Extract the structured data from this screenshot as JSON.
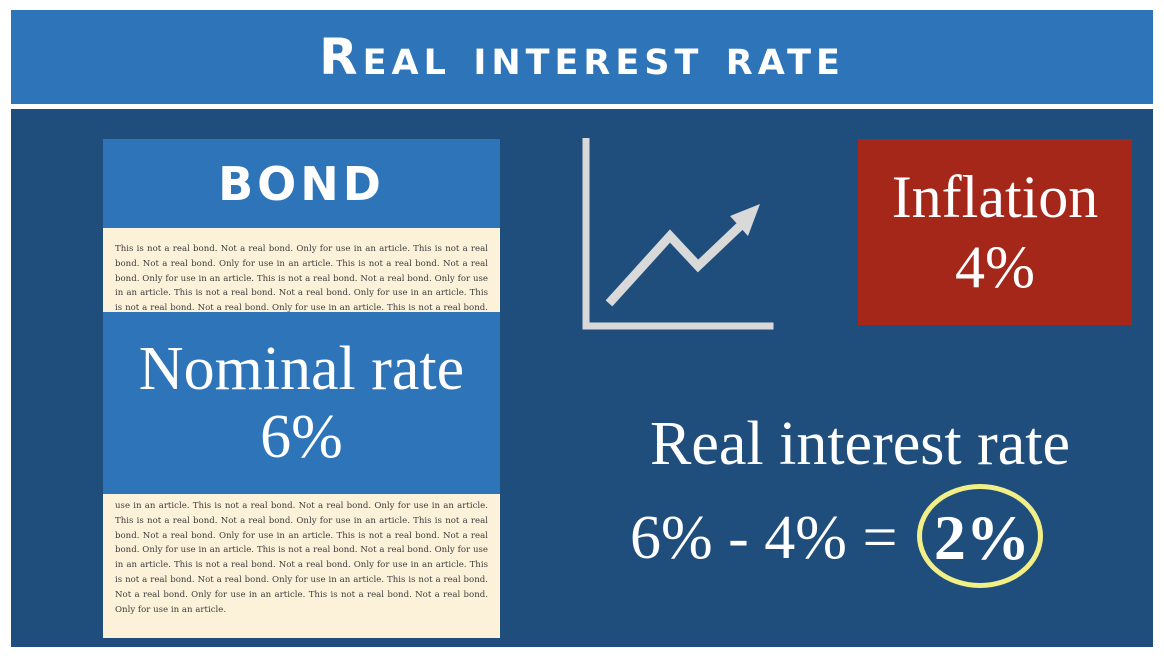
{
  "header": {
    "title": "Real interest rate"
  },
  "bond": {
    "title": "BOND",
    "fine_print_top": "This is not a real bond. Not a real bond. Only for use in an article. This is not a real bond. Not a real bond. Only for use in an article. This is not a real bond. Not a real bond. Only for use in an article. This is not a real bond. Not a real bond. Only for use in an article. This is not a real bond. Not a real bond. Only for use in an article. This is not a real bond. Not a real bond. Only for use in an article. This is not a real bond. Not a real bond. Only for use in an article.",
    "fine_print_bottom": "use in an article. This is not a real bond. Not a real bond. Only for use in an article. This is not a real bond. Not a real bond. Only for use in an article. This is not a real bond. Not a real bond. Only for use in an article. This is not a real bond. Not a real bond. Only for use in an article. This is not a real bond. Not a real bond. Only for use in an article. This is not a real bond. Not a real bond. Only for use in an article. This is not a real bond. Not a real bond. Only for use in an article. This is not a real bond. Not a real bond. Only for use in an article. This is not a real bond. Not a real bond. Only for use in an article.",
    "nominal_label": "Nominal rate",
    "nominal_value": "6%"
  },
  "chart_icon": {
    "name": "trending-up-icon",
    "color": "#d9d9d9"
  },
  "inflation": {
    "label": "Inflation",
    "value": "4%"
  },
  "real_rate": {
    "label": "Real interest rate",
    "equation": "6% - 4% = ",
    "result": "2%",
    "highlight_color": "#f2ef86"
  },
  "colors": {
    "header_blue": "#2e74b8",
    "panel_navy": "#1f4e7d",
    "inflation_red": "#a4271a",
    "bond_paper": "#fcf2d9"
  }
}
